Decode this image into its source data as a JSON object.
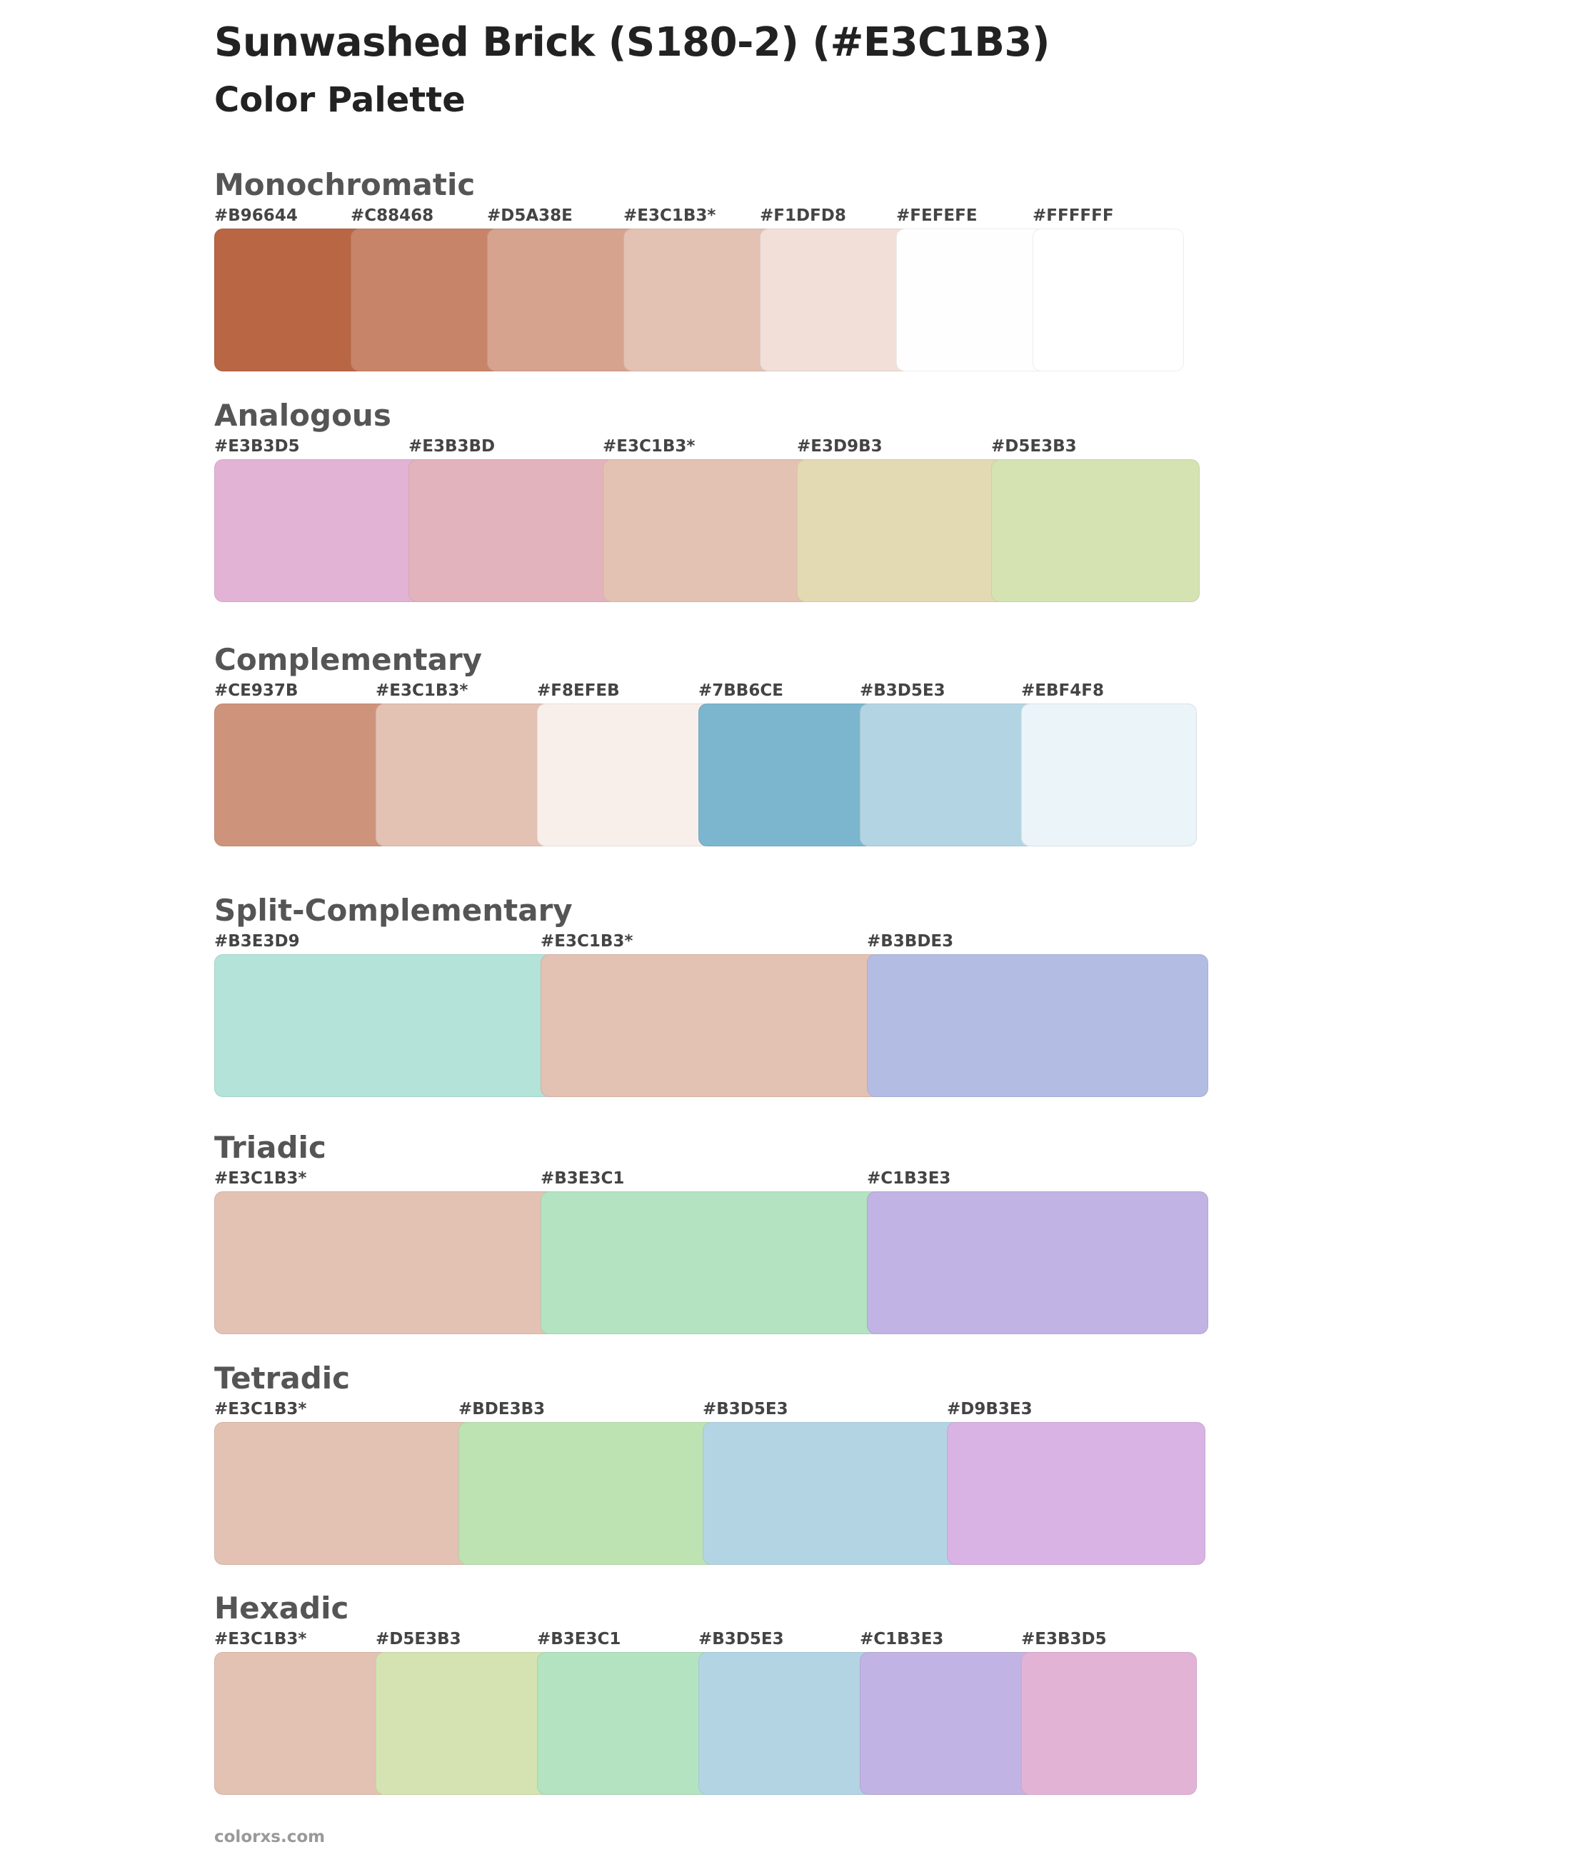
{
  "page": {
    "title": "Sunwashed Brick (S180-2) (#E3C1B3)",
    "subtitle": "Color Palette",
    "footer": "colorxs.com"
  },
  "sections": [
    {
      "id": "monochromatic",
      "title": "Monochromatic",
      "colors": [
        {
          "label": "#B96644",
          "hex": "#B96644"
        },
        {
          "label": "#C88468",
          "hex": "#C88468"
        },
        {
          "label": "#D5A38E",
          "hex": "#D5A38E"
        },
        {
          "label": "#E3C1B3*",
          "hex": "#E3C1B3"
        },
        {
          "label": "#F1DFD8",
          "hex": "#F1DFD8"
        },
        {
          "label": "#FEFEFE",
          "hex": "#FEFEFE"
        },
        {
          "label": "#FFFFFF",
          "hex": "#FFFFFF"
        }
      ]
    },
    {
      "id": "analogous",
      "title": "Analogous",
      "colors": [
        {
          "label": "#E3B3D5",
          "hex": "#E3B3D5"
        },
        {
          "label": "#E3B3BD",
          "hex": "#E3B3BD"
        },
        {
          "label": "#E3C1B3*",
          "hex": "#E3C1B3"
        },
        {
          "label": "#E3D9B3",
          "hex": "#E3D9B3"
        },
        {
          "label": "#D5E3B3",
          "hex": "#D5E3B3"
        }
      ]
    },
    {
      "id": "complementary",
      "title": "Complementary",
      "colors": [
        {
          "label": "#CE937B",
          "hex": "#CE937B"
        },
        {
          "label": "#E3C1B3*",
          "hex": "#E3C1B3"
        },
        {
          "label": "#F8EFEB",
          "hex": "#F8EFEB"
        },
        {
          "label": "#7BB6CE",
          "hex": "#7BB6CE"
        },
        {
          "label": "#B3D5E3",
          "hex": "#B3D5E3"
        },
        {
          "label": "#EBF4F8",
          "hex": "#EBF4F8"
        }
      ]
    },
    {
      "id": "split-complementary",
      "title": "Split-Complementary",
      "colors": [
        {
          "label": "#B3E3D9",
          "hex": "#B3E3D9"
        },
        {
          "label": "#E3C1B3*",
          "hex": "#E3C1B3"
        },
        {
          "label": "#B3BDE3",
          "hex": "#B3BDE3"
        }
      ]
    },
    {
      "id": "triadic",
      "title": "Triadic",
      "colors": [
        {
          "label": "#E3C1B3*",
          "hex": "#E3C1B3"
        },
        {
          "label": "#B3E3C1",
          "hex": "#B3E3C1"
        },
        {
          "label": "#C1B3E3",
          "hex": "#C1B3E3"
        }
      ]
    },
    {
      "id": "tetradic",
      "title": "Tetradic",
      "colors": [
        {
          "label": "#E3C1B3*",
          "hex": "#E3C1B3"
        },
        {
          "label": "#BDE3B3",
          "hex": "#BDE3B3"
        },
        {
          "label": "#B3D5E3",
          "hex": "#B3D5E3"
        },
        {
          "label": "#D9B3E3",
          "hex": "#D9B3E3"
        }
      ]
    },
    {
      "id": "hexadic",
      "title": "Hexadic",
      "colors": [
        {
          "label": "#E3C1B3*",
          "hex": "#E3C1B3"
        },
        {
          "label": "#D5E3B3",
          "hex": "#D5E3B3"
        },
        {
          "label": "#B3E3C1",
          "hex": "#B3E3C1"
        },
        {
          "label": "#B3D5E3",
          "hex": "#B3D5E3"
        },
        {
          "label": "#C1B3E3",
          "hex": "#C1B3E3"
        },
        {
          "label": "#E3B3D5",
          "hex": "#E3B3D5"
        }
      ]
    }
  ]
}
